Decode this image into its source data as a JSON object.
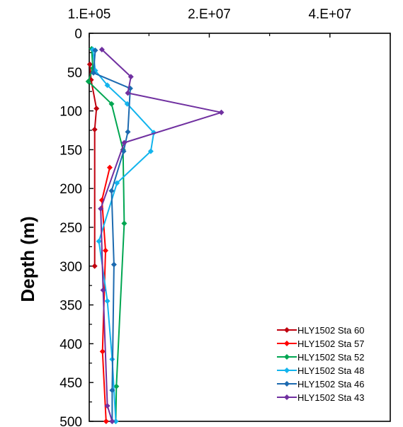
{
  "chart_data": {
    "type": "line",
    "title": "",
    "xlabel": "",
    "ylabel": "Depth (m)",
    "x_tick_labels": [
      "1.E+05",
      "2.E+07",
      "4.E+07"
    ],
    "x_ticks": [
      100000,
      20000000,
      40000000
    ],
    "xlim": [
      100000,
      50000000
    ],
    "y_tick_labels": [
      "0",
      "50",
      "100",
      "150",
      "200",
      "250",
      "300",
      "350",
      "400",
      "450",
      "500"
    ],
    "y_ticks": [
      0,
      50,
      100,
      150,
      200,
      250,
      300,
      350,
      400,
      450,
      500
    ],
    "ylim": [
      0,
      500
    ],
    "y_inverted": true,
    "grid": false,
    "legend_position": "bottom-right",
    "series": [
      {
        "name": "HLY1502 Sta 60",
        "color": "#c0000e",
        "marker": "diamond",
        "points": [
          [
            200000,
            40
          ],
          [
            400000,
            60
          ],
          [
            1300000,
            97
          ],
          [
            1000000,
            124
          ],
          [
            1000000,
            300
          ]
        ]
      },
      {
        "name": "HLY1502 Sta 57",
        "color": "#ff0000",
        "marker": "diamond",
        "points": [
          [
            3500000,
            173
          ],
          [
            2200000,
            215
          ],
          [
            2800000,
            280
          ],
          [
            2300000,
            410
          ],
          [
            2900000,
            500
          ]
        ]
      },
      {
        "name": "HLY1502 Sta 52",
        "color": "#00a651",
        "marker": "diamond",
        "points": [
          [
            500000,
            20
          ],
          [
            700000,
            45
          ],
          [
            -50000,
            62
          ],
          [
            3800000,
            91
          ],
          [
            5700000,
            150
          ],
          [
            5900000,
            245
          ],
          [
            4600000,
            455
          ],
          [
            4500000,
            500
          ]
        ]
      },
      {
        "name": "HLY1502 Sta 48",
        "color": "#12b4ed",
        "marker": "diamond",
        "points": [
          [
            700000,
            21
          ],
          [
            1100000,
            48
          ],
          [
            3100000,
            67
          ],
          [
            6400000,
            91
          ],
          [
            10800000,
            128
          ],
          [
            10300000,
            152
          ],
          [
            4700000,
            193
          ],
          [
            1700000,
            268
          ],
          [
            3100000,
            345
          ],
          [
            3900000,
            420
          ],
          [
            4500000,
            500
          ]
        ]
      },
      {
        "name": "HLY1502 Sta 46",
        "color": "#1c6ab0",
        "marker": "diamond",
        "points": [
          [
            1100000,
            22
          ],
          [
            800000,
            51
          ],
          [
            6900000,
            71
          ],
          [
            6500000,
            127
          ],
          [
            5800000,
            152
          ],
          [
            3800000,
            203
          ],
          [
            4200000,
            298
          ],
          [
            3900000,
            460
          ],
          [
            3900000,
            500
          ]
        ]
      },
      {
        "name": "HLY1502 Sta 43",
        "color": "#7030a0",
        "marker": "diamond",
        "points": [
          [
            2200000,
            21
          ],
          [
            7000000,
            56
          ],
          [
            6500000,
            77
          ],
          [
            22000000,
            102
          ],
          [
            5900000,
            141
          ],
          [
            2000000,
            226
          ],
          [
            2400000,
            331
          ],
          [
            3100000,
            480
          ],
          [
            3900000,
            500
          ]
        ]
      }
    ]
  }
}
